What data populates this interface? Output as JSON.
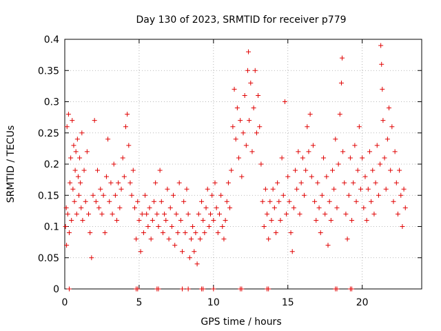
{
  "chart_data": {
    "type": "scatter",
    "title": "Day 130 of 2023, SRMTID for receiver p779",
    "xlabel": "GPS time / hours",
    "ylabel": "SRMTID / TECUs",
    "xlim": [
      0,
      24
    ],
    "ylim": [
      0,
      0.4
    ],
    "xticks": [
      0,
      5,
      10,
      15,
      20
    ],
    "yticks": [
      0,
      0.05,
      0.1,
      0.15,
      0.2,
      0.25,
      0.3,
      0.35,
      0.4
    ],
    "xtick_labels": [
      "0",
      "5",
      "10",
      "15",
      "20"
    ],
    "ytick_labels": [
      "0",
      "0.05",
      "0.1",
      "0.15",
      "0.2",
      "0.25",
      "0.3",
      "0.35",
      "0.4"
    ],
    "grid": true,
    "marker": "+",
    "series": [
      {
        "name": "SRMTID",
        "color": "#e00000",
        "points": [
          [
            0.05,
            0.1
          ],
          [
            0.1,
            0.13
          ],
          [
            0.12,
            0.07
          ],
          [
            0.15,
            0.26
          ],
          [
            0.2,
            0.12
          ],
          [
            0.25,
            0.28
          ],
          [
            0.3,
            0.09
          ],
          [
            0.35,
            0.17
          ],
          [
            0.4,
            0.21
          ],
          [
            0.45,
            0.11
          ],
          [
            0.5,
            0.27
          ],
          [
            0.55,
            0.16
          ],
          [
            0.6,
            0.23
          ],
          [
            0.65,
            0.14
          ],
          [
            0.7,
            0.19
          ],
          [
            0.75,
            0.22
          ],
          [
            0.8,
            0.12
          ],
          [
            0.85,
            0.24
          ],
          [
            0.9,
            0.18
          ],
          [
            0.95,
            0.15
          ],
          [
            1.0,
            0.21
          ],
          [
            1.05,
            0.17
          ],
          [
            1.1,
            0.13
          ],
          [
            1.15,
            0.25
          ],
          [
            1.2,
            0.11
          ],
          [
            1.3,
            0.19
          ],
          [
            1.4,
            0.14
          ],
          [
            1.5,
            0.22
          ],
          [
            1.6,
            0.12
          ],
          [
            1.7,
            0.09
          ],
          [
            1.8,
            0.05
          ],
          [
            1.9,
            0.15
          ],
          [
            2.0,
            0.27
          ],
          [
            2.1,
            0.14
          ],
          [
            2.2,
            0.19
          ],
          [
            2.3,
            0.13
          ],
          [
            2.4,
            0.16
          ],
          [
            2.5,
            0.12
          ],
          [
            2.6,
            0.15
          ],
          [
            2.7,
            0.09
          ],
          [
            2.8,
            0.18
          ],
          [
            2.9,
            0.24
          ],
          [
            3.0,
            0.14
          ],
          [
            3.1,
            0.17
          ],
          [
            3.2,
            0.12
          ],
          [
            3.3,
            0.2
          ],
          [
            3.4,
            0.15
          ],
          [
            3.5,
            0.11
          ],
          [
            3.6,
            0.17
          ],
          [
            3.7,
            0.13
          ],
          [
            3.8,
            0.16
          ],
          [
            3.9,
            0.21
          ],
          [
            4.0,
            0.18
          ],
          [
            4.1,
            0.26
          ],
          [
            4.2,
            0.28
          ],
          [
            4.3,
            0.23
          ],
          [
            4.4,
            0.17
          ],
          [
            4.5,
            0.15
          ],
          [
            4.6,
            0.19
          ],
          [
            4.7,
            0.13
          ],
          [
            4.8,
            0.08
          ],
          [
            4.9,
            0.14
          ],
          [
            5.0,
            0.11
          ],
          [
            5.1,
            0.06
          ],
          [
            5.2,
            0.12
          ],
          [
            5.3,
            0.09
          ],
          [
            5.4,
            0.15
          ],
          [
            5.5,
            0.12
          ],
          [
            5.6,
            0.1
          ],
          [
            5.7,
            0.13
          ],
          [
            5.8,
            0.08
          ],
          [
            5.9,
            0.11
          ],
          [
            6.0,
            0.14
          ],
          [
            6.1,
            0.17
          ],
          [
            6.2,
            0.12
          ],
          [
            6.3,
            0.1
          ],
          [
            6.4,
            0.19
          ],
          [
            6.5,
            0.14
          ],
          [
            6.6,
            0.09
          ],
          [
            6.7,
            0.12
          ],
          [
            6.8,
            0.11
          ],
          [
            6.9,
            0.16
          ],
          [
            7.0,
            0.08
          ],
          [
            7.1,
            0.13
          ],
          [
            7.2,
            0.1
          ],
          [
            7.3,
            0.15
          ],
          [
            7.4,
            0.07
          ],
          [
            7.5,
            0.12
          ],
          [
            7.6,
            0.09
          ],
          [
            7.7,
            0.17
          ],
          [
            7.8,
            0.11
          ],
          [
            7.9,
            0.06
          ],
          [
            8.0,
            0.14
          ],
          [
            8.1,
            0.09
          ],
          [
            8.2,
            0.16
          ],
          [
            8.3,
            0.12
          ],
          [
            8.4,
            0.05
          ],
          [
            8.5,
            0.08
          ],
          [
            8.6,
            0.1
          ],
          [
            8.7,
            0.06
          ],
          [
            8.8,
            0.09
          ],
          [
            8.9,
            0.04
          ],
          [
            9.0,
            0.12
          ],
          [
            9.1,
            0.08
          ],
          [
            9.2,
            0.14
          ],
          [
            9.3,
            0.11
          ],
          [
            9.4,
            0.09
          ],
          [
            9.5,
            0.13
          ],
          [
            9.6,
            0.16
          ],
          [
            9.7,
            0.1
          ],
          [
            9.8,
            0.12
          ],
          [
            9.9,
            0.15
          ],
          [
            10.0,
            0.11
          ],
          [
            10.1,
            0.17
          ],
          [
            10.2,
            0.13
          ],
          [
            10.3,
            0.09
          ],
          [
            10.4,
            0.12
          ],
          [
            10.5,
            0.15
          ],
          [
            10.6,
            0.1
          ],
          [
            10.7,
            0.08
          ],
          [
            10.8,
            0.11
          ],
          [
            10.9,
            0.14
          ],
          [
            11.0,
            0.17
          ],
          [
            11.1,
            0.13
          ],
          [
            11.2,
            0.19
          ],
          [
            11.3,
            0.26
          ],
          [
            11.4,
            0.32
          ],
          [
            11.5,
            0.24
          ],
          [
            11.6,
            0.29
          ],
          [
            11.7,
            0.21
          ],
          [
            11.8,
            0.27
          ],
          [
            11.9,
            0.18
          ],
          [
            12.0,
            0.25
          ],
          [
            12.1,
            0.31
          ],
          [
            12.2,
            0.23
          ],
          [
            12.3,
            0.35
          ],
          [
            12.35,
            0.38
          ],
          [
            12.4,
            0.27
          ],
          [
            12.5,
            0.33
          ],
          [
            12.6,
            0.22
          ],
          [
            12.7,
            0.29
          ],
          [
            12.8,
            0.35
          ],
          [
            12.9,
            0.25
          ],
          [
            13.0,
            0.31
          ],
          [
            13.1,
            0.26
          ],
          [
            13.2,
            0.2
          ],
          [
            13.3,
            0.14
          ],
          [
            13.4,
            0.1
          ],
          [
            13.5,
            0.16
          ],
          [
            13.6,
            0.12
          ],
          [
            13.7,
            0.08
          ],
          [
            13.8,
            0.14
          ],
          [
            13.9,
            0.11
          ],
          [
            14.0,
            0.16
          ],
          [
            14.1,
            0.13
          ],
          [
            14.2,
            0.09
          ],
          [
            14.3,
            0.17
          ],
          [
            14.4,
            0.14
          ],
          [
            14.5,
            0.11
          ],
          [
            14.6,
            0.21
          ],
          [
            14.7,
            0.15
          ],
          [
            14.8,
            0.3
          ],
          [
            14.9,
            0.12
          ],
          [
            15.0,
            0.18
          ],
          [
            15.1,
            0.14
          ],
          [
            15.2,
            0.09
          ],
          [
            15.3,
            0.06
          ],
          [
            15.4,
            0.13
          ],
          [
            15.5,
            0.19
          ],
          [
            15.6,
            0.16
          ],
          [
            15.7,
            0.22
          ],
          [
            15.8,
            0.12
          ],
          [
            15.9,
            0.17
          ],
          [
            16.0,
            0.21
          ],
          [
            16.1,
            0.15
          ],
          [
            16.2,
            0.19
          ],
          [
            16.3,
            0.26
          ],
          [
            16.4,
            0.22
          ],
          [
            16.5,
            0.28
          ],
          [
            16.6,
            0.18
          ],
          [
            16.7,
            0.23
          ],
          [
            16.8,
            0.14
          ],
          [
            16.9,
            0.11
          ],
          [
            17.0,
            0.17
          ],
          [
            17.1,
            0.13
          ],
          [
            17.2,
            0.09
          ],
          [
            17.3,
            0.15
          ],
          [
            17.4,
            0.21
          ],
          [
            17.5,
            0.12
          ],
          [
            17.6,
            0.18
          ],
          [
            17.7,
            0.07
          ],
          [
            17.8,
            0.14
          ],
          [
            17.9,
            0.11
          ],
          [
            18.0,
            0.19
          ],
          [
            18.1,
            0.16
          ],
          [
            18.2,
            0.24
          ],
          [
            18.3,
            0.13
          ],
          [
            18.4,
            0.2
          ],
          [
            18.5,
            0.28
          ],
          [
            18.6,
            0.33
          ],
          [
            18.65,
            0.37
          ],
          [
            18.7,
            0.22
          ],
          [
            18.8,
            0.17
          ],
          [
            18.9,
            0.12
          ],
          [
            19.0,
            0.08
          ],
          [
            19.1,
            0.15
          ],
          [
            19.2,
            0.21
          ],
          [
            19.3,
            0.11
          ],
          [
            19.4,
            0.17
          ],
          [
            19.5,
            0.23
          ],
          [
            19.6,
            0.14
          ],
          [
            19.7,
            0.19
          ],
          [
            19.8,
            0.26
          ],
          [
            19.9,
            0.16
          ],
          [
            20.0,
            0.21
          ],
          [
            20.1,
            0.13
          ],
          [
            20.2,
            0.18
          ],
          [
            20.3,
            0.11
          ],
          [
            20.4,
            0.16
          ],
          [
            20.5,
            0.22
          ],
          [
            20.6,
            0.14
          ],
          [
            20.7,
            0.19
          ],
          [
            20.8,
            0.12
          ],
          [
            20.9,
            0.17
          ],
          [
            21.0,
            0.23
          ],
          [
            21.1,
            0.15
          ],
          [
            21.2,
            0.2
          ],
          [
            21.25,
            0.39
          ],
          [
            21.3,
            0.36
          ],
          [
            21.35,
            0.32
          ],
          [
            21.4,
            0.27
          ],
          [
            21.5,
            0.21
          ],
          [
            21.6,
            0.16
          ],
          [
            21.7,
            0.24
          ],
          [
            21.8,
            0.29
          ],
          [
            21.9,
            0.19
          ],
          [
            22.0,
            0.26
          ],
          [
            22.1,
            0.14
          ],
          [
            22.2,
            0.22
          ],
          [
            22.3,
            0.17
          ],
          [
            22.4,
            0.12
          ],
          [
            22.5,
            0.19
          ],
          [
            22.6,
            0.15
          ],
          [
            22.7,
            0.1
          ],
          [
            22.8,
            0.16
          ],
          [
            22.9,
            0.13
          ]
        ]
      },
      {
        "name": "SRMTID zero values",
        "color": "#e00000",
        "points": [
          [
            0.3,
            0
          ],
          [
            4.8,
            0
          ],
          [
            4.9,
            0
          ],
          [
            6.2,
            0
          ],
          [
            6.3,
            0
          ],
          [
            7.9,
            0
          ],
          [
            8.3,
            0
          ],
          [
            9.2,
            0
          ],
          [
            9.3,
            0
          ],
          [
            10.0,
            0
          ],
          [
            11.8,
            0
          ],
          [
            11.9,
            0
          ],
          [
            13.6,
            0
          ],
          [
            13.7,
            0
          ],
          [
            18.2,
            0
          ],
          [
            18.3,
            0
          ],
          [
            19.2,
            0
          ],
          [
            19.3,
            0
          ]
        ]
      }
    ]
  }
}
